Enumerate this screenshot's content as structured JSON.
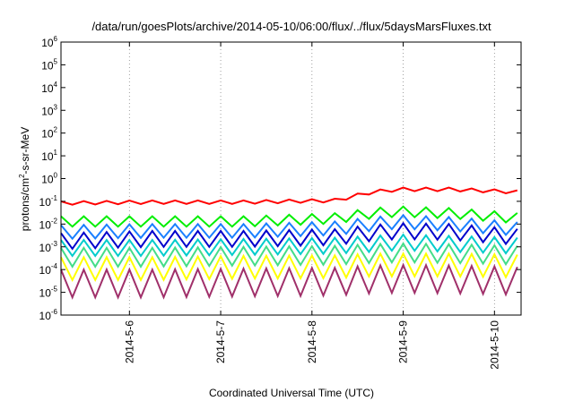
{
  "chart_data": {
    "type": "line",
    "title": "/data/run/goesPlots/archive/2014-05-10/06:00/flux/../flux/5daysMarsFluxes.txt",
    "xlabel": "Coordinated Universal Time (UTC)",
    "ylabel": {
      "prefix": "protons/cm",
      "sup": "2",
      "suffix": "-s-sr-MeV"
    },
    "y_scale": "log",
    "ylim": [
      1e-06,
      1000000.0
    ],
    "y_ticks": [
      {
        "base": "10",
        "exp": "-6"
      },
      {
        "base": "10",
        "exp": "-5"
      },
      {
        "base": "10",
        "exp": "-4"
      },
      {
        "base": "10",
        "exp": "-3"
      },
      {
        "base": "10",
        "exp": "-2"
      },
      {
        "base": "10",
        "exp": "-1"
      },
      {
        "base": "10",
        "exp": "0"
      },
      {
        "base": "10",
        "exp": "1"
      },
      {
        "base": "10",
        "exp": "2"
      },
      {
        "base": "10",
        "exp": "3"
      },
      {
        "base": "10",
        "exp": "4"
      },
      {
        "base": "10",
        "exp": "5"
      },
      {
        "base": "10",
        "exp": "6"
      }
    ],
    "x_range": [
      "2014-05-05 06:00",
      "2014-05-10 07:00"
    ],
    "x_ticks": [
      {
        "label": "2014-5-6",
        "date": "2014-05-06"
      },
      {
        "label": "2014-5-7",
        "date": "2014-05-07"
      },
      {
        "label": "2014-5-8",
        "date": "2014-05-08"
      },
      {
        "label": "2014-5-9",
        "date": "2014-05-09"
      },
      {
        "label": "2014-5-10",
        "date": "2014-05-10"
      }
    ],
    "grid": "vertical dotted at x ticks",
    "sample_interval_hours": 3,
    "series": [
      {
        "color": "#ff0000",
        "base": [
          0.1,
          0.11,
          0.11,
          0.13,
          0.3,
          0.4,
          0.4,
          0.3
        ],
        "base_time_days": [
          0,
          1,
          2,
          3,
          3.4,
          3.7,
          4.3,
          5.04
        ],
        "dip_factor": 0.7
      },
      {
        "color": "#00ee00",
        "base": [
          0.022,
          0.022,
          0.022,
          0.03,
          0.05,
          0.06,
          0.05,
          0.03
        ],
        "base_time_days": [
          0,
          1,
          2,
          3,
          3.4,
          3.7,
          4.3,
          5.04
        ],
        "dip_factor": 0.35
      },
      {
        "color": "#1a7fff",
        "base": [
          0.009,
          0.01,
          0.01,
          0.013,
          0.02,
          0.025,
          0.02,
          0.012
        ],
        "base_time_days": [
          0,
          1,
          2,
          3,
          3.4,
          3.7,
          4.3,
          5.04
        ],
        "dip_factor": 0.25
      },
      {
        "color": "#0000cc",
        "base": [
          0.004,
          0.005,
          0.005,
          0.006,
          0.009,
          0.011,
          0.01,
          0.006
        ],
        "base_time_days": [
          0,
          1,
          2,
          3,
          3.4,
          3.7,
          4.3,
          5.04
        ],
        "dip_factor": 0.2
      },
      {
        "color": "#00cccc",
        "base": [
          0.002,
          0.002,
          0.0022,
          0.0025,
          0.003,
          0.0035,
          0.003,
          0.0025
        ],
        "base_time_days": [
          0,
          1,
          2,
          3,
          3.4,
          3.7,
          4.3,
          5.04
        ],
        "dip_factor": 0.2
      },
      {
        "color": "#44dd88",
        "base": [
          0.0009,
          0.0009,
          0.001,
          0.0011,
          0.0013,
          0.0014,
          0.0013,
          0.0011
        ],
        "base_time_days": [
          0,
          1,
          2,
          3,
          3.4,
          3.7,
          4.3,
          5.04
        ],
        "dip_factor": 0.15
      },
      {
        "color": "#ffff00",
        "base": [
          0.00035,
          0.00035,
          0.0004,
          0.00042,
          0.0005,
          0.0005,
          0.0005,
          0.00045
        ],
        "base_time_days": [
          0,
          1,
          2,
          3,
          3.4,
          3.7,
          4.3,
          5.04
        ],
        "dip_factor": 0.1
      },
      {
        "color": "#a0306a",
        "base": [
          0.0001,
          0.0001,
          0.00011,
          0.00012,
          0.00015,
          0.00016,
          0.00015,
          0.00013
        ],
        "base_time_days": [
          0,
          1,
          2,
          3,
          3.4,
          3.7,
          4.3,
          5.04
        ],
        "dip_factor": 0.06
      }
    ]
  }
}
